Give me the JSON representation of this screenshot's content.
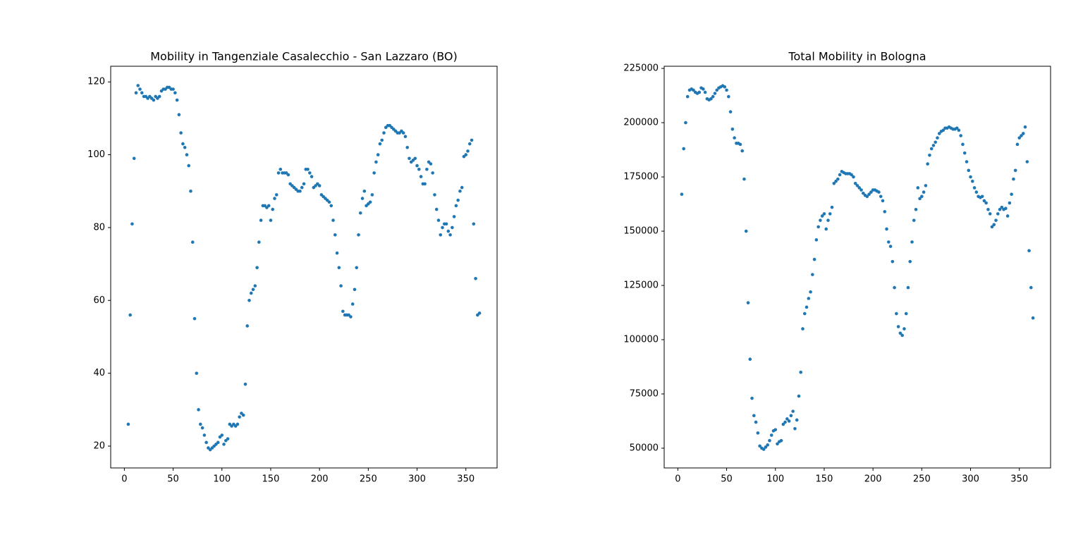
{
  "chart_data": [
    {
      "type": "scatter",
      "title": "Mobility in Tangenziale Casalecchio - San Lazzaro (BO)",
      "color": "#1f77b4",
      "x": [
        4,
        6,
        8,
        10,
        12,
        14,
        16,
        18,
        20,
        22,
        24,
        26,
        28,
        30,
        32,
        34,
        36,
        38,
        40,
        42,
        44,
        46,
        48,
        50,
        52,
        54,
        56,
        58,
        60,
        62,
        64,
        66,
        68,
        70,
        72,
        74,
        76,
        78,
        80,
        82,
        84,
        86,
        88,
        90,
        92,
        94,
        96,
        98,
        100,
        102,
        104,
        106,
        108,
        110,
        112,
        114,
        116,
        118,
        120,
        122,
        124,
        126,
        128,
        130,
        132,
        134,
        136,
        138,
        140,
        142,
        144,
        146,
        148,
        150,
        152,
        154,
        156,
        158,
        160,
        162,
        164,
        166,
        168,
        170,
        172,
        174,
        176,
        178,
        180,
        182,
        184,
        186,
        188,
        190,
        192,
        194,
        196,
        198,
        200,
        202,
        204,
        206,
        208,
        210,
        212,
        214,
        216,
        218,
        220,
        222,
        224,
        226,
        228,
        230,
        232,
        234,
        236,
        238,
        240,
        242,
        244,
        246,
        248,
        250,
        252,
        254,
        256,
        258,
        260,
        262,
        264,
        266,
        268,
        270,
        272,
        274,
        276,
        278,
        280,
        282,
        284,
        286,
        288,
        290,
        292,
        294,
        296,
        298,
        300,
        302,
        304,
        306,
        308,
        310,
        312,
        314,
        316,
        318,
        320,
        322,
        324,
        326,
        328,
        330,
        332,
        334,
        336,
        338,
        340,
        342,
        344,
        346,
        348,
        350,
        352,
        354,
        356,
        358,
        360,
        362,
        364
      ],
      "values": [
        26,
        56,
        81,
        99,
        117,
        119,
        118,
        117,
        116,
        116,
        115.5,
        116,
        115.5,
        115,
        116,
        115.5,
        116,
        117.5,
        118,
        118,
        118.5,
        118.5,
        118,
        118,
        117,
        115,
        111,
        106,
        103,
        102,
        100,
        97,
        90,
        76,
        55,
        40,
        30,
        26,
        25,
        23,
        21,
        19.5,
        19,
        19.5,
        20,
        20.5,
        21,
        22.5,
        23,
        20.5,
        21.5,
        22,
        26,
        25.5,
        26,
        25.5,
        26,
        28,
        29,
        28.5,
        37,
        53,
        60,
        62,
        63,
        64,
        69,
        76,
        82,
        86,
        86,
        85.5,
        86,
        82,
        85,
        88,
        89,
        95,
        96,
        95,
        95,
        95,
        94.5,
        92,
        91.5,
        91,
        90.5,
        90,
        90,
        91,
        92,
        96,
        96,
        95,
        94,
        91,
        91.5,
        92,
        91.5,
        89,
        88.5,
        88,
        87.5,
        87,
        86,
        82,
        78,
        73,
        69,
        64,
        57,
        56,
        56,
        56,
        55.5,
        59,
        63,
        69,
        78,
        84,
        88,
        90,
        86,
        86.5,
        87,
        89,
        95,
        98,
        100,
        103,
        104,
        106,
        107.5,
        108,
        108,
        107.5,
        107,
        106.5,
        106,
        106,
        106.5,
        106,
        105,
        102,
        99,
        98,
        98.5,
        99,
        97,
        96,
        94,
        92,
        92,
        96,
        98,
        97.5,
        95,
        89,
        85,
        82,
        78,
        80,
        81,
        81,
        79,
        78,
        80,
        83,
        86,
        87.5,
        90,
        91,
        99.5,
        100,
        101,
        103,
        104,
        81,
        66,
        56,
        56.5
      ],
      "xlim": [
        -14,
        382
      ],
      "ylim": [
        14,
        124.3
      ],
      "xticks": [
        0,
        50,
        100,
        150,
        200,
        250,
        300,
        350
      ],
      "yticks": [
        20,
        40,
        60,
        80,
        100,
        120
      ]
    },
    {
      "type": "scatter",
      "title": "Total Mobility in Bologna",
      "color": "#1f77b4",
      "x": [
        4,
        6,
        8,
        10,
        12,
        14,
        16,
        18,
        20,
        22,
        24,
        26,
        28,
        30,
        32,
        34,
        36,
        38,
        40,
        42,
        44,
        46,
        48,
        50,
        52,
        54,
        56,
        58,
        60,
        62,
        64,
        66,
        68,
        70,
        72,
        74,
        76,
        78,
        80,
        82,
        84,
        86,
        88,
        90,
        92,
        94,
        96,
        98,
        100,
        102,
        104,
        106,
        108,
        110,
        112,
        114,
        116,
        118,
        120,
        122,
        124,
        126,
        128,
        130,
        132,
        134,
        136,
        138,
        140,
        142,
        144,
        146,
        148,
        150,
        152,
        154,
        156,
        158,
        160,
        162,
        164,
        166,
        168,
        170,
        172,
        174,
        176,
        178,
        180,
        182,
        184,
        186,
        188,
        190,
        192,
        194,
        196,
        198,
        200,
        202,
        204,
        206,
        208,
        210,
        212,
        214,
        216,
        218,
        220,
        222,
        224,
        226,
        228,
        230,
        232,
        234,
        236,
        238,
        240,
        242,
        244,
        246,
        248,
        250,
        252,
        254,
        256,
        258,
        260,
        262,
        264,
        266,
        268,
        270,
        272,
        274,
        276,
        278,
        280,
        282,
        284,
        286,
        288,
        290,
        292,
        294,
        296,
        298,
        300,
        302,
        304,
        306,
        308,
        310,
        312,
        314,
        316,
        318,
        320,
        322,
        324,
        326,
        328,
        330,
        332,
        334,
        336,
        338,
        340,
        342,
        344,
        346,
        348,
        350,
        352,
        354,
        356,
        358,
        360,
        362,
        364
      ],
      "values": [
        167000,
        188000,
        200000,
        212000,
        215000,
        215500,
        215000,
        214000,
        213500,
        214000,
        216000,
        215500,
        214000,
        211000,
        210500,
        211000,
        212000,
        213500,
        215000,
        216000,
        216500,
        217000,
        216500,
        215000,
        212000,
        205000,
        197000,
        193000,
        190500,
        190500,
        190000,
        187000,
        174000,
        150000,
        117000,
        91000,
        73000,
        65000,
        62000,
        57000,
        51000,
        50000,
        49500,
        50500,
        51500,
        53500,
        56000,
        58000,
        58500,
        52000,
        53000,
        53500,
        61000,
        62000,
        63500,
        62500,
        65000,
        67000,
        59000,
        63000,
        74000,
        85000,
        105000,
        112000,
        115000,
        119000,
        122000,
        130000,
        137000,
        146000,
        152000,
        155000,
        157000,
        158000,
        151000,
        155000,
        158000,
        161000,
        172000,
        173000,
        174000,
        176000,
        177500,
        177000,
        176500,
        176500,
        176500,
        176000,
        175000,
        172000,
        171000,
        170000,
        169000,
        167500,
        166500,
        166000,
        167000,
        168000,
        169000,
        169000,
        168500,
        168000,
        166000,
        164000,
        159000,
        151000,
        145000,
        143000,
        136000,
        124000,
        112000,
        106000,
        103000,
        102000,
        105000,
        112000,
        124000,
        136000,
        145000,
        155000,
        160000,
        170000,
        165000,
        166000,
        168000,
        171000,
        181000,
        185000,
        188000,
        189500,
        191000,
        193000,
        195000,
        196000,
        196500,
        197500,
        197500,
        198000,
        197500,
        197000,
        197000,
        197500,
        196500,
        194000,
        190000,
        186000,
        182000,
        178000,
        175000,
        173000,
        170000,
        168000,
        166000,
        165500,
        166000,
        164000,
        163000,
        160000,
        158000,
        152000,
        153000,
        155000,
        158000,
        160000,
        161000,
        160000,
        160500,
        157000,
        163000,
        167000,
        174000,
        178000,
        190000,
        193000,
        194000,
        195000,
        198000,
        182000,
        141000,
        124000,
        110000
      ],
      "xlim": [
        -14,
        382
      ],
      "ylim": [
        40900,
        226000
      ],
      "xticks": [
        0,
        50,
        100,
        150,
        200,
        250,
        300,
        350
      ],
      "yticks": [
        50000,
        75000,
        100000,
        125000,
        150000,
        175000,
        200000,
        225000
      ]
    }
  ]
}
